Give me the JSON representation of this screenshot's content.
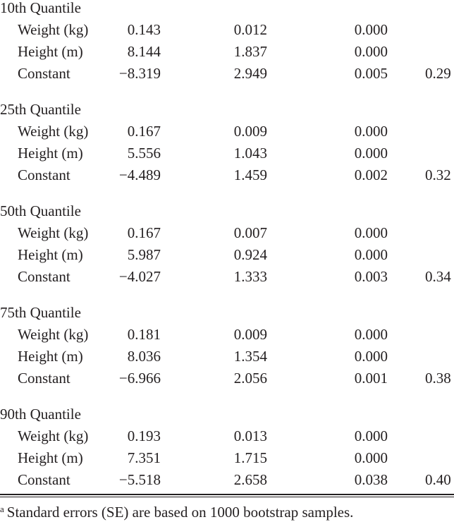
{
  "groups": [
    {
      "title": "10th Quantile",
      "rows": [
        {
          "label": "Weight (kg)",
          "values": [
            "0.143",
            "0.012",
            "0.000",
            ""
          ]
        },
        {
          "label": "Height (m)",
          "values": [
            "8.144",
            "1.837",
            "0.000",
            ""
          ]
        },
        {
          "label": "Constant",
          "values": [
            "−8.319",
            "2.949",
            "0.005",
            "0.29"
          ]
        }
      ]
    },
    {
      "title": "25th Quantile",
      "rows": [
        {
          "label": "Weight (kg)",
          "values": [
            "0.167",
            "0.009",
            "0.000",
            ""
          ]
        },
        {
          "label": "Height (m)",
          "values": [
            "5.556",
            "1.043",
            "0.000",
            ""
          ]
        },
        {
          "label": "Constant",
          "values": [
            "−4.489",
            "1.459",
            "0.002",
            "0.32"
          ]
        }
      ]
    },
    {
      "title": "50th Quantile",
      "rows": [
        {
          "label": "Weight (kg)",
          "values": [
            "0.167",
            "0.007",
            "0.000",
            ""
          ]
        },
        {
          "label": "Height (m)",
          "values": [
            "5.987",
            "0.924",
            "0.000",
            ""
          ]
        },
        {
          "label": "Constant",
          "values": [
            "−4.027",
            "1.333",
            "0.003",
            "0.34"
          ]
        }
      ]
    },
    {
      "title": "75th Quantile",
      "rows": [
        {
          "label": "Weight (kg)",
          "values": [
            "0.181",
            "0.009",
            "0.000",
            ""
          ]
        },
        {
          "label": "Height (m)",
          "values": [
            "8.036",
            "1.354",
            "0.000",
            ""
          ]
        },
        {
          "label": "Constant",
          "values": [
            "−6.966",
            "2.056",
            "0.001",
            "0.38"
          ]
        }
      ]
    },
    {
      "title": "90th Quantile",
      "rows": [
        {
          "label": "Weight (kg)",
          "values": [
            "0.193",
            "0.013",
            "0.000",
            ""
          ]
        },
        {
          "label": "Height (m)",
          "values": [
            "7.351",
            "1.715",
            "0.000",
            ""
          ]
        },
        {
          "label": "Constant",
          "values": [
            "−5.518",
            "2.658",
            "0.038",
            "0.40"
          ]
        }
      ]
    }
  ],
  "footnote": {
    "marker": "a",
    "text": "Standard errors (SE) are based on 1000 bootstrap samples."
  }
}
